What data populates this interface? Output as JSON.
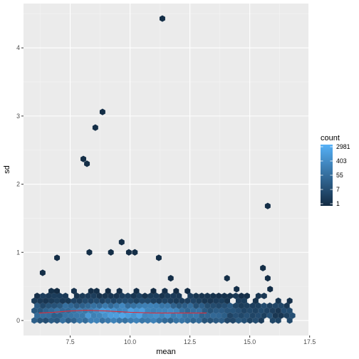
{
  "chart_data": {
    "type": "hexbin",
    "xlabel": "mean",
    "ylabel": "sd",
    "xlim": [
      5.55,
      17.45
    ],
    "ylim": [
      -0.22,
      4.65
    ],
    "x_ticks": [
      7.5,
      10.0,
      12.5,
      15.0,
      17.5
    ],
    "x_tick_labels": [
      "7.5",
      "10.0",
      "12.5",
      "15.0",
      "17.5"
    ],
    "y_ticks": [
      0,
      1,
      2,
      3,
      4
    ],
    "y_tick_labels": [
      "0",
      "1",
      "2",
      "3",
      "4"
    ],
    "grid": true,
    "legend": {
      "title": "count",
      "position": "right",
      "breaks": [
        "2981",
        "403",
        "55",
        "7",
        "1"
      ],
      "color_low": "#132B43",
      "color_high": "#56B1F7"
    },
    "dense_band": {
      "x_range": [
        6.0,
        16.9
      ],
      "y_range": [
        0.0,
        0.45
      ]
    },
    "outliers": [
      {
        "x": 11.35,
        "y": 4.43
      },
      {
        "x": 8.85,
        "y": 3.06
      },
      {
        "x": 8.55,
        "y": 2.83
      },
      {
        "x": 8.05,
        "y": 2.37
      },
      {
        "x": 8.2,
        "y": 2.3
      },
      {
        "x": 15.75,
        "y": 1.68
      },
      {
        "x": 9.65,
        "y": 1.15
      },
      {
        "x": 9.95,
        "y": 1.0
      },
      {
        "x": 10.2,
        "y": 1.0
      },
      {
        "x": 8.3,
        "y": 1.0
      },
      {
        "x": 9.2,
        "y": 1.0
      },
      {
        "x": 6.95,
        "y": 0.92
      },
      {
        "x": 11.2,
        "y": 0.92
      },
      {
        "x": 15.55,
        "y": 0.77
      },
      {
        "x": 6.35,
        "y": 0.7
      },
      {
        "x": 11.7,
        "y": 0.62
      },
      {
        "x": 15.75,
        "y": 0.62
      },
      {
        "x": 14.05,
        "y": 0.62
      },
      {
        "x": 14.45,
        "y": 0.46
      },
      {
        "x": 15.85,
        "y": 0.46
      }
    ],
    "smooth_line": {
      "color": "#dd2c3a",
      "x": [
        6.2,
        6.8,
        7.5,
        8.2,
        9.0,
        10.0,
        11.0,
        12.0,
        13.2
      ],
      "y": [
        0.11,
        0.12,
        0.14,
        0.15,
        0.14,
        0.12,
        0.11,
        0.11,
        0.11
      ]
    }
  }
}
